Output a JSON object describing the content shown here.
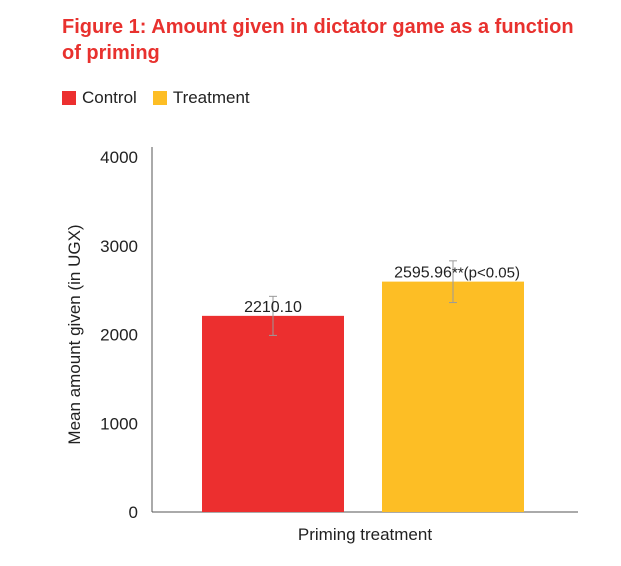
{
  "colors": {
    "title": "#e8312e",
    "control": "#ec2f2f",
    "treatment": "#fdbe25",
    "axis": "#555555",
    "error_bar": "#9a9a9a"
  },
  "chart_data": {
    "type": "bar",
    "title": "Figure 1: Amount given in dictator game as a function of priming",
    "xlabel": "Priming treatment",
    "ylabel": "Mean amount given (in UGX)",
    "ylim": [
      0,
      4000
    ],
    "yticks": [
      0,
      1000,
      2000,
      3000,
      4000
    ],
    "grid": false,
    "legend_position": "top-left",
    "series": [
      {
        "name": "Control",
        "value": 2210.1,
        "label": "2210.10",
        "error_low": 1990,
        "error_high": 2430,
        "color": "#ec2f2f"
      },
      {
        "name": "Treatment",
        "value": 2595.96,
        "label": "2595.96",
        "annotation": "**(p<0.05)",
        "error_low": 2360,
        "error_high": 2830,
        "color": "#fdbe25"
      }
    ]
  }
}
